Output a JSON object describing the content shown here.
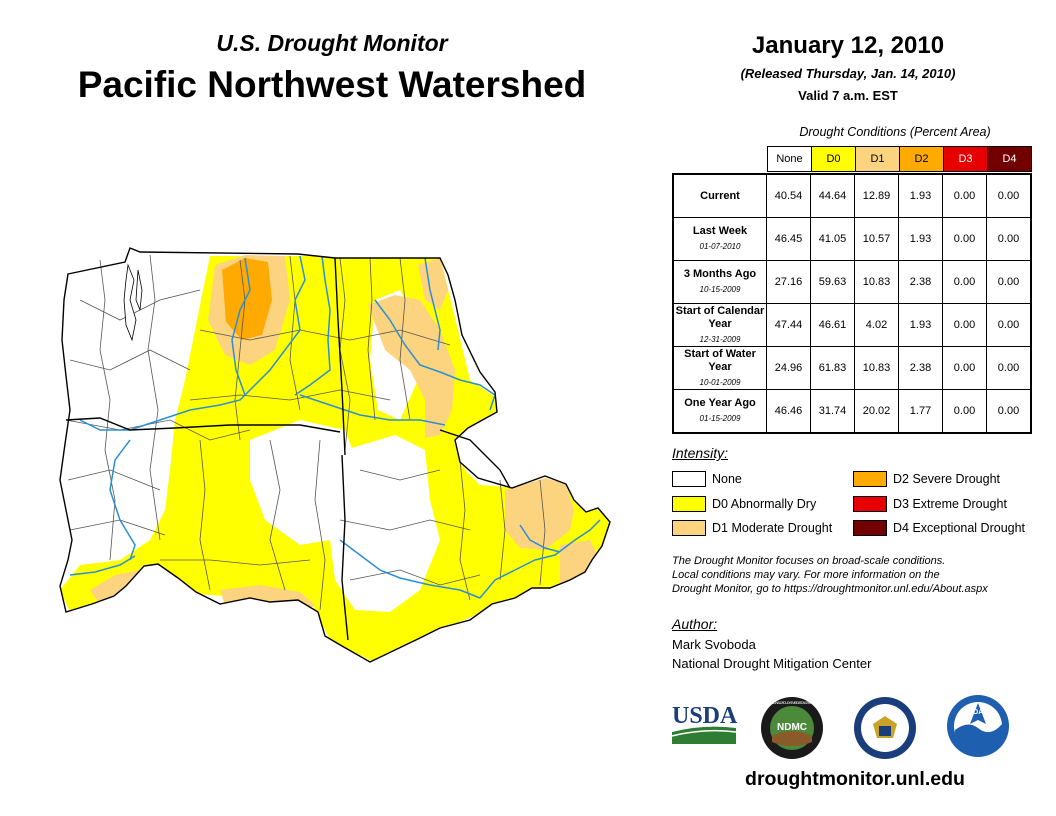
{
  "header": {
    "subtitle": "U.S. Drought Monitor",
    "title": "Pacific Northwest Watershed",
    "date": "January 12, 2010",
    "released": "(Released Thursday, Jan. 14, 2010)",
    "valid": "Valid 7 a.m. EST"
  },
  "table": {
    "caption": "Drought Conditions (Percent Area)",
    "columns": [
      {
        "label": "None",
        "color": "#ffffff"
      },
      {
        "label": "D0",
        "color": "#ffff00"
      },
      {
        "label": "D1",
        "color": "#fcd37f"
      },
      {
        "label": "D2",
        "color": "#ffaa00"
      },
      {
        "label": "D3",
        "color": "#e60000"
      },
      {
        "label": "D4",
        "color": "#730000"
      }
    ],
    "rows": [
      {
        "label": "Current",
        "date": "",
        "values": [
          "40.54",
          "44.64",
          "12.89",
          "1.93",
          "0.00",
          "0.00"
        ]
      },
      {
        "label": "Last Week",
        "date": "01-07-2010",
        "values": [
          "46.45",
          "41.05",
          "10.57",
          "1.93",
          "0.00",
          "0.00"
        ]
      },
      {
        "label": "3 Months Ago",
        "date": "10-15-2009",
        "values": [
          "27.16",
          "59.63",
          "10.83",
          "2.38",
          "0.00",
          "0.00"
        ]
      },
      {
        "label": "Start of Calendar Year",
        "date": "12-31-2009",
        "values": [
          "47.44",
          "46.61",
          "4.02",
          "1.93",
          "0.00",
          "0.00"
        ]
      },
      {
        "label": "Start of Water Year",
        "date": "10-01-2009",
        "values": [
          "24.96",
          "61.83",
          "10.83",
          "2.38",
          "0.00",
          "0.00"
        ]
      },
      {
        "label": "One Year Ago",
        "date": "01-15-2009",
        "values": [
          "46.46",
          "31.74",
          "20.02",
          "1.77",
          "0.00",
          "0.00"
        ]
      }
    ]
  },
  "legend": {
    "title": "Intensity:",
    "items": [
      {
        "label": "None",
        "color": "#ffffff"
      },
      {
        "label": "D0 Abnormally Dry",
        "color": "#ffff00"
      },
      {
        "label": "D1 Moderate Drought",
        "color": "#fcd37f"
      },
      {
        "label": "D2 Severe Drought",
        "color": "#ffaa00"
      },
      {
        "label": "D3 Extreme Drought",
        "color": "#e60000"
      },
      {
        "label": "D4 Exceptional Drought",
        "color": "#730000"
      }
    ]
  },
  "note": {
    "line1": "The Drought Monitor focuses on broad-scale conditions.",
    "line2": "Local conditions may vary. For more information on the",
    "line3": "Drought Monitor, go to https://droughtmonitor.unl.edu/About.aspx"
  },
  "author": {
    "title": "Author:",
    "name": "Mark Svoboda",
    "org": "National Drought Mitigation Center"
  },
  "logos": {
    "usda": "USDA",
    "ndmc": "NDMC",
    "noaa": "NOAA",
    "ndmc_ring": "NATIONAL DROUGHT MITIGATION CENTER"
  },
  "website": "droughtmonitor.unl.edu",
  "map": {
    "colors": {
      "none": "#ffffff",
      "d0": "#ffff00",
      "d1": "#fcd37f",
      "d2": "#ffaa00",
      "river": "#2a8fd6",
      "border": "#000000",
      "subbasin": "#555555"
    }
  }
}
